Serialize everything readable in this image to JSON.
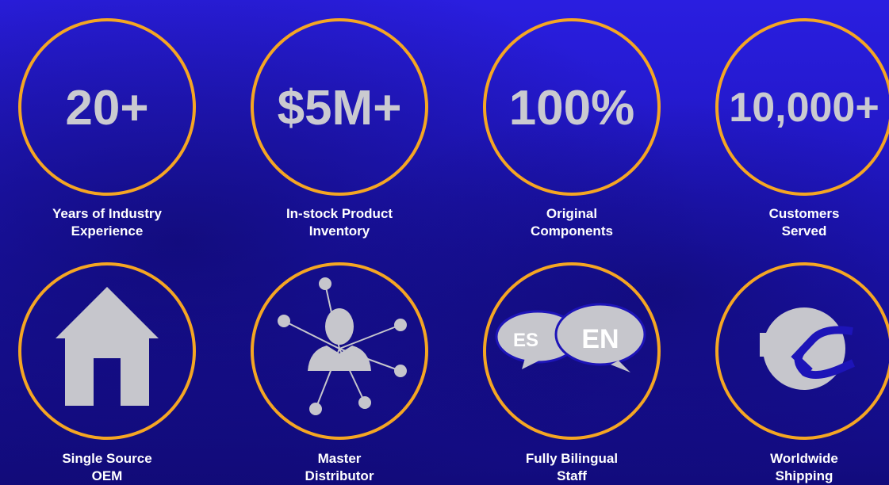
{
  "stats": [
    {
      "value": "20+",
      "label": [
        "Years of Industry",
        "Experience"
      ]
    },
    {
      "value": "$5M+",
      "label": [
        "In-stock Product",
        "Inventory"
      ]
    },
    {
      "value": "100%",
      "label": [
        "Original",
        "Components"
      ]
    },
    {
      "value": "10,000+",
      "label": [
        "Customers",
        "Served"
      ]
    },
    {
      "label": [
        "Single Source",
        "OEM"
      ]
    },
    {
      "label": [
        "Master",
        "Distributor"
      ]
    },
    {
      "label": [
        "Fully Bilingual",
        "Staff"
      ],
      "icon_text": [
        "ES",
        "EN"
      ]
    },
    {
      "label": [
        "Worldwide",
        "Shipping"
      ]
    }
  ]
}
